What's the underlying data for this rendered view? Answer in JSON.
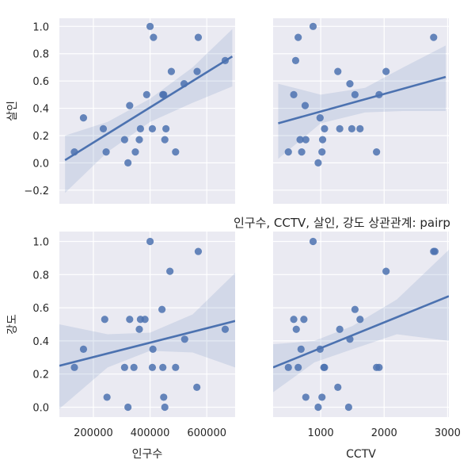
{
  "title": "인구수, CCTV, 살인, 강도 상관관계: pairp",
  "colors": {
    "panel_bg": "#eaeaf2",
    "grid": "#ffffff",
    "point": "#4c72b0",
    "line": "#4c72b0",
    "band": "#4c72b0"
  },
  "chart_data": [
    {
      "type": "scatter",
      "panel": "top-left",
      "xlabel": "",
      "ylabel": "살인",
      "xlim": [
        80000,
        700000
      ],
      "ylim": [
        -0.3,
        1.06
      ],
      "yticks": [
        -0.2,
        0.0,
        0.2,
        0.4,
        0.6,
        0.8,
        1.0
      ],
      "ytick_labels": [
        "−0.2",
        "0.0",
        "0.2",
        "0.4",
        "0.6",
        "0.8",
        "1.0"
      ],
      "x": [
        133000,
        165000,
        235000,
        245000,
        310000,
        322000,
        328000,
        348000,
        362000,
        366000,
        388000,
        400000,
        408000,
        412000,
        445000,
        448000,
        452000,
        456000,
        475000,
        490000,
        520000,
        566000,
        570000,
        665000
      ],
      "y": [
        0.08,
        0.33,
        0.25,
        0.08,
        0.17,
        0.0,
        0.42,
        0.08,
        0.17,
        0.25,
        0.5,
        1.0,
        0.25,
        0.92,
        0.5,
        0.5,
        0.17,
        0.25,
        0.67,
        0.08,
        0.58,
        0.67,
        0.92,
        0.75
      ],
      "regression": {
        "x": [
          100000,
          690000
        ],
        "y": [
          0.02,
          0.78
        ]
      },
      "ci_upper": [
        [
          100000,
          0.2
        ],
        [
          250000,
          0.3
        ],
        [
          400000,
          0.47
        ],
        [
          550000,
          0.7
        ],
        [
          690000,
          0.98
        ]
      ],
      "ci_lower": [
        [
          100000,
          -0.22
        ],
        [
          250000,
          0.08
        ],
        [
          400000,
          0.3
        ],
        [
          550000,
          0.44
        ],
        [
          690000,
          0.56
        ]
      ]
    },
    {
      "type": "scatter",
      "panel": "top-right",
      "xlabel": "",
      "ylabel": "",
      "xlim": [
        250,
        3020
      ],
      "ylim": [
        -0.3,
        1.06
      ],
      "x": [
        490,
        575,
        605,
        645,
        675,
        700,
        755,
        765,
        880,
        960,
        990,
        1020,
        1030,
        1060,
        1270,
        1300,
        1460,
        1490,
        1540,
        1620,
        1880,
        1920,
        2030,
        2780
      ],
      "y": [
        0.08,
        0.5,
        0.75,
        0.92,
        0.17,
        0.08,
        0.42,
        0.17,
        1.0,
        0.0,
        0.33,
        0.08,
        0.17,
        0.25,
        0.67,
        0.25,
        0.58,
        0.25,
        0.5,
        0.25,
        0.08,
        0.5,
        0.67,
        0.92
      ],
      "regression": {
        "x": [
          330,
          2970
        ],
        "y": [
          0.29,
          0.63
        ]
      },
      "ci_upper": [
        [
          330,
          0.58
        ],
        [
          1000,
          0.5
        ],
        [
          1700,
          0.55
        ],
        [
          2300,
          0.7
        ],
        [
          2970,
          0.86
        ]
      ],
      "ci_lower": [
        [
          330,
          0.03
        ],
        [
          1000,
          0.29
        ],
        [
          1700,
          0.37
        ],
        [
          2300,
          0.38
        ],
        [
          2970,
          0.38
        ]
      ]
    },
    {
      "type": "scatter",
      "panel": "bottom-left",
      "xlabel": "인구수",
      "ylabel": "강도",
      "xlim": [
        80000,
        700000
      ],
      "ylim": [
        -0.06,
        1.06
      ],
      "xticks": [
        200000,
        400000,
        600000
      ],
      "xtick_labels": [
        "200000",
        "400000",
        "600000"
      ],
      "yticks": [
        0.0,
        0.2,
        0.4,
        0.6,
        0.8,
        1.0
      ],
      "ytick_labels": [
        "0.0",
        "0.2",
        "0.4",
        "0.6",
        "0.8",
        "1.0"
      ],
      "x": [
        133000,
        165000,
        240000,
        248000,
        310000,
        322000,
        328000,
        343000,
        362000,
        366000,
        382000,
        400000,
        408000,
        410000,
        442000,
        445000,
        448000,
        452000,
        470000,
        490000,
        522000,
        565000,
        570000,
        665000
      ],
      "y": [
        0.24,
        0.35,
        0.53,
        0.06,
        0.24,
        0.0,
        0.53,
        0.24,
        0.47,
        0.53,
        0.53,
        1.0,
        0.24,
        0.35,
        0.59,
        0.24,
        0.06,
        0.0,
        0.82,
        0.24,
        0.41,
        0.12,
        0.94,
        0.47
      ],
      "regression": {
        "x": [
          80000,
          700000
        ],
        "y": [
          0.25,
          0.52
        ]
      },
      "ci_upper": [
        [
          80000,
          0.5
        ],
        [
          250000,
          0.44
        ],
        [
          400000,
          0.45
        ],
        [
          550000,
          0.56
        ],
        [
          700000,
          0.81
        ]
      ],
      "ci_lower": [
        [
          80000,
          -0.01
        ],
        [
          250000,
          0.24
        ],
        [
          400000,
          0.34
        ],
        [
          550000,
          0.33
        ],
        [
          700000,
          0.24
        ]
      ]
    },
    {
      "type": "scatter",
      "panel": "bottom-right",
      "xlabel": "CCTV",
      "ylabel": "",
      "xlim": [
        250,
        3020
      ],
      "ylim": [
        -0.06,
        1.06
      ],
      "xticks": [
        1000,
        2000,
        3000
      ],
      "xtick_labels": [
        "1000",
        "2000",
        "3000"
      ],
      "x": [
        490,
        575,
        615,
        645,
        690,
        735,
        765,
        880,
        960,
        990,
        1020,
        1050,
        1060,
        1270,
        1300,
        1440,
        1460,
        1540,
        1620,
        1880,
        1920,
        2030,
        2780,
        2800
      ],
      "y": [
        0.24,
        0.53,
        0.47,
        0.24,
        0.35,
        0.53,
        0.06,
        1.0,
        0.0,
        0.35,
        0.06,
        0.24,
        0.24,
        0.12,
        0.47,
        0.0,
        0.41,
        0.59,
        0.53,
        0.24,
        0.24,
        0.82,
        0.94,
        0.94
      ],
      "regression": {
        "x": [
          250,
          3020
        ],
        "y": [
          0.24,
          0.67
        ]
      },
      "ci_upper": [
        [
          250,
          0.38
        ],
        [
          900,
          0.4
        ],
        [
          1500,
          0.49
        ],
        [
          2200,
          0.65
        ],
        [
          3020,
          0.95
        ]
      ],
      "ci_lower": [
        [
          250,
          0.09
        ],
        [
          900,
          0.27
        ],
        [
          1500,
          0.35
        ],
        [
          2200,
          0.44
        ],
        [
          3020,
          0.4
        ]
      ]
    }
  ]
}
